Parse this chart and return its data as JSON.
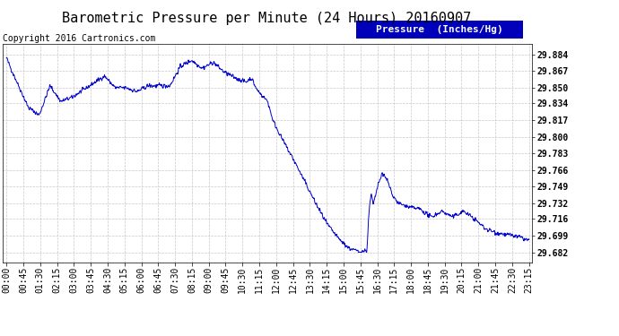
{
  "title": "Barometric Pressure per Minute (24 Hours) 20160907",
  "copyright": "Copyright 2016 Cartronics.com",
  "legend_label": "Pressure  (Inches/Hg)",
  "background_color": "#ffffff",
  "line_color": "#0000cc",
  "grid_color": "#c8c8c8",
  "y_ticks": [
    29.682,
    29.699,
    29.716,
    29.732,
    29.749,
    29.766,
    29.783,
    29.8,
    29.817,
    29.834,
    29.85,
    29.867,
    29.884
  ],
  "ylim": [
    29.672,
    29.895
  ],
  "x_tick_labels": [
    "00:00",
    "00:45",
    "01:30",
    "02:15",
    "03:00",
    "03:45",
    "04:30",
    "05:15",
    "06:00",
    "06:45",
    "07:30",
    "08:15",
    "09:00",
    "09:45",
    "10:30",
    "11:15",
    "12:00",
    "12:45",
    "13:30",
    "14:15",
    "15:00",
    "15:45",
    "16:30",
    "17:15",
    "18:00",
    "18:45",
    "19:30",
    "20:15",
    "21:00",
    "21:45",
    "22:30",
    "23:15"
  ],
  "title_fontsize": 11,
  "copyright_fontsize": 7,
  "tick_fontsize": 7,
  "legend_fontsize": 8
}
